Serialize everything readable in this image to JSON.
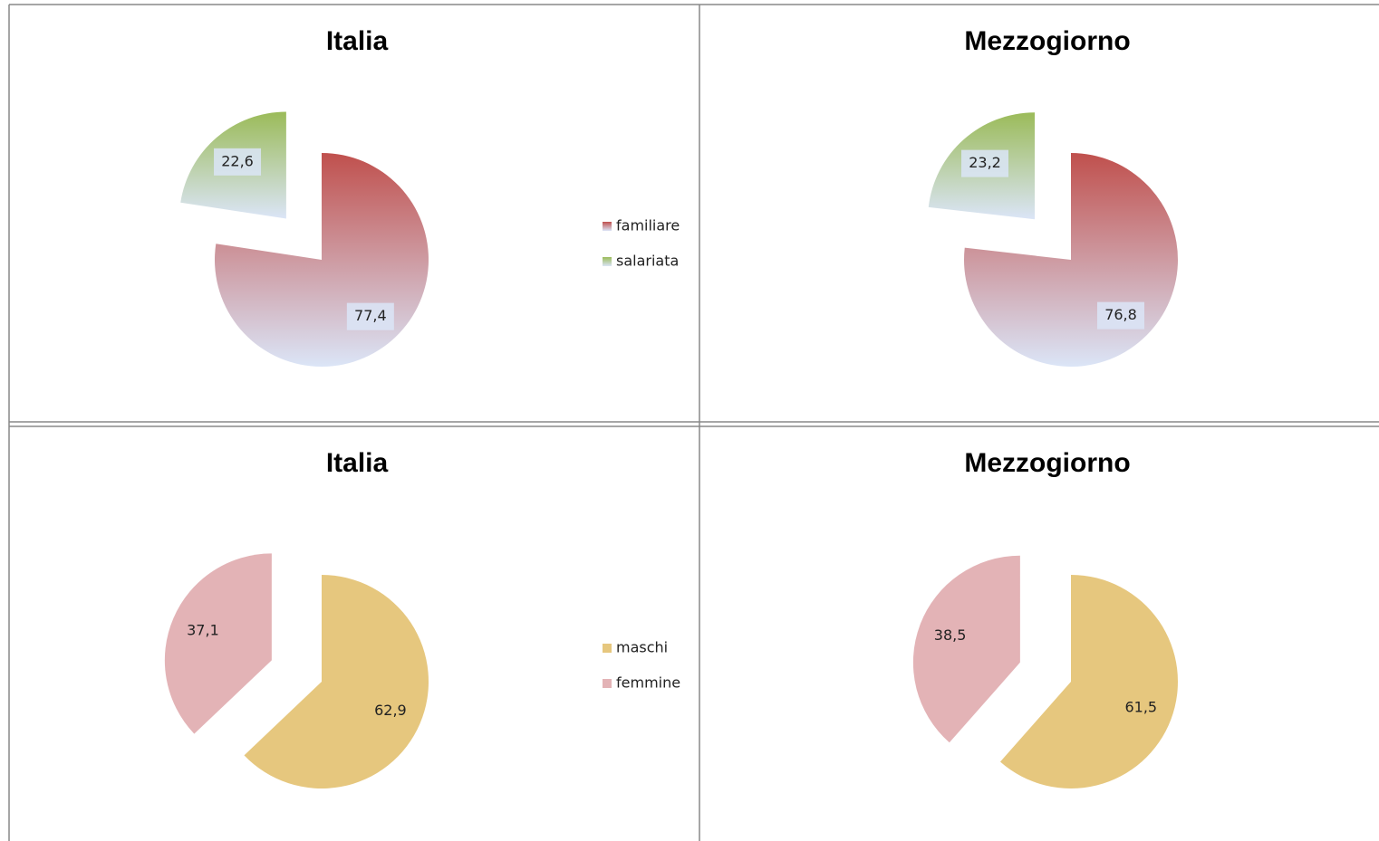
{
  "chart_data": [
    {
      "type": "pie",
      "title": "Italia",
      "categories": [
        "familiare",
        "salariata"
      ],
      "values": [
        77.4,
        22.6
      ],
      "value_labels": [
        "77,4",
        "22,6"
      ],
      "colors": [
        "#c0504d",
        "#9bbb59"
      ],
      "legend": "right"
    },
    {
      "type": "pie",
      "title": "Mezzogiorno",
      "values": [
        76.8,
        23.2
      ],
      "value_labels": [
        "76,8",
        "23,2"
      ],
      "colors": [
        "#c0504d",
        "#9bbb59"
      ]
    },
    {
      "type": "pie",
      "title": "Italia",
      "categories": [
        "maschi",
        "femmine"
      ],
      "values": [
        62.9,
        37.1
      ],
      "value_labels": [
        "62,9",
        "37,1"
      ],
      "colors": [
        "#e6c77e",
        "#e3b3b6"
      ],
      "legend": "right"
    },
    {
      "type": "pie",
      "title": "Mezzogiorno",
      "values": [
        61.5,
        38.5
      ],
      "value_labels": [
        "61,5",
        "38,5"
      ],
      "colors": [
        "#e6c77e",
        "#e3b3b6"
      ]
    }
  ]
}
